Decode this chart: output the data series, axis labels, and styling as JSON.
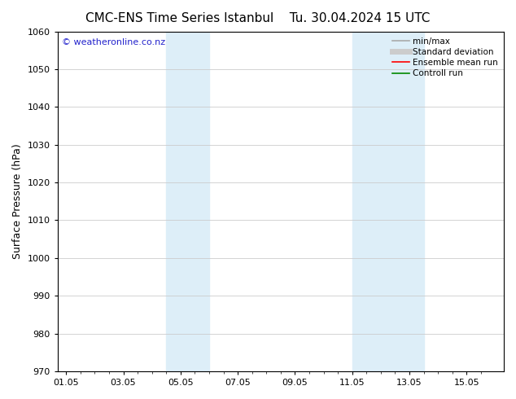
{
  "title_left": "CMC-ENS Time Series Istanbul",
  "title_right": "Tu. 30.04.2024 15 UTC",
  "ylabel": "Surface Pressure (hPa)",
  "ylim": [
    970,
    1060
  ],
  "yticks": [
    970,
    980,
    990,
    1000,
    1010,
    1020,
    1030,
    1040,
    1050,
    1060
  ],
  "xtick_labels": [
    "01.05",
    "03.05",
    "05.05",
    "07.05",
    "09.05",
    "11.05",
    "13.05",
    "15.05"
  ],
  "xtick_positions": [
    0,
    2,
    4,
    6,
    8,
    10,
    12,
    14
  ],
  "xmin": -0.3,
  "xmax": 15.3,
  "shaded_bands": [
    {
      "x_start": 3.5,
      "x_end": 5.0
    },
    {
      "x_start": 10.0,
      "x_end": 12.5
    }
  ],
  "shaded_color": "#ddeef8",
  "grid_color": "#cccccc",
  "watermark_text": "© weatheronline.co.nz",
  "watermark_color": "#2222cc",
  "legend_entries": [
    {
      "label": "min/max",
      "color": "#aaaaaa",
      "lw": 1.2
    },
    {
      "label": "Standard deviation",
      "color": "#cccccc",
      "lw": 5
    },
    {
      "label": "Ensemble mean run",
      "color": "#ff0000",
      "lw": 1.2
    },
    {
      "label": "Controll run",
      "color": "#008800",
      "lw": 1.2
    }
  ],
  "title_fontsize": 11,
  "axis_fontsize": 9,
  "tick_fontsize": 8,
  "watermark_fontsize": 8,
  "legend_fontsize": 7.5,
  "background_color": "#ffffff"
}
